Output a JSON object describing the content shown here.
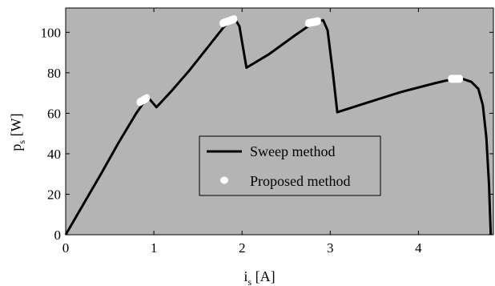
{
  "chart_data": {
    "type": "line",
    "xlabel": {
      "main": "i",
      "sub": "s",
      "unit": " [A]"
    },
    "ylabel": {
      "main": "p",
      "sub": "s",
      "unit": " [W]"
    },
    "xlim": [
      0,
      4.85
    ],
    "ylim": [
      0,
      112
    ],
    "xticks": [
      0,
      1,
      2,
      3,
      4
    ],
    "yticks": [
      0,
      20,
      40,
      60,
      80,
      100
    ],
    "grid": false,
    "background": "#b4b4b4",
    "legend_position": "center",
    "series": [
      {
        "name": "Sweep method",
        "style": "solid-line",
        "color": "#000000",
        "points": [
          [
            0.0,
            0.0
          ],
          [
            0.2,
            15.0
          ],
          [
            0.4,
            30.0
          ],
          [
            0.6,
            45.5
          ],
          [
            0.8,
            60.0
          ],
          [
            0.88,
            65.0
          ],
          [
            0.95,
            67.0
          ],
          [
            1.03,
            63.0
          ],
          [
            1.2,
            71.0
          ],
          [
            1.4,
            81.0
          ],
          [
            1.6,
            92.0
          ],
          [
            1.8,
            103.0
          ],
          [
            1.92,
            106.5
          ],
          [
            1.97,
            103.0
          ],
          [
            2.05,
            82.5
          ],
          [
            2.3,
            89.0
          ],
          [
            2.6,
            98.5
          ],
          [
            2.8,
            104.5
          ],
          [
            2.92,
            106.0
          ],
          [
            2.97,
            101.0
          ],
          [
            3.03,
            80.0
          ],
          [
            3.08,
            60.5
          ],
          [
            3.4,
            65.0
          ],
          [
            3.8,
            70.5
          ],
          [
            4.2,
            75.0
          ],
          [
            4.4,
            77.0
          ],
          [
            4.5,
            77.0
          ],
          [
            4.6,
            75.5
          ],
          [
            4.68,
            72.0
          ],
          [
            4.73,
            64.0
          ],
          [
            4.77,
            48.0
          ],
          [
            4.8,
            25.0
          ],
          [
            4.82,
            0.0
          ]
        ]
      },
      {
        "name": "Proposed method",
        "style": "markers",
        "color": "#ffffff",
        "clusters": [
          {
            "x": [
              0.84,
              0.92
            ],
            "y": [
              65.5,
              67.5
            ]
          },
          {
            "x": [
              1.78,
              1.91
            ],
            "y": [
              104.5,
              106.5
            ]
          },
          {
            "x": [
              2.75,
              2.86
            ],
            "y": [
              104.5,
              105.5
            ]
          },
          {
            "x": [
              4.37,
              4.47
            ],
            "y": [
              77.0,
              77.0
            ]
          }
        ]
      }
    ],
    "legend": [
      "Sweep method",
      "Proposed method"
    ]
  }
}
